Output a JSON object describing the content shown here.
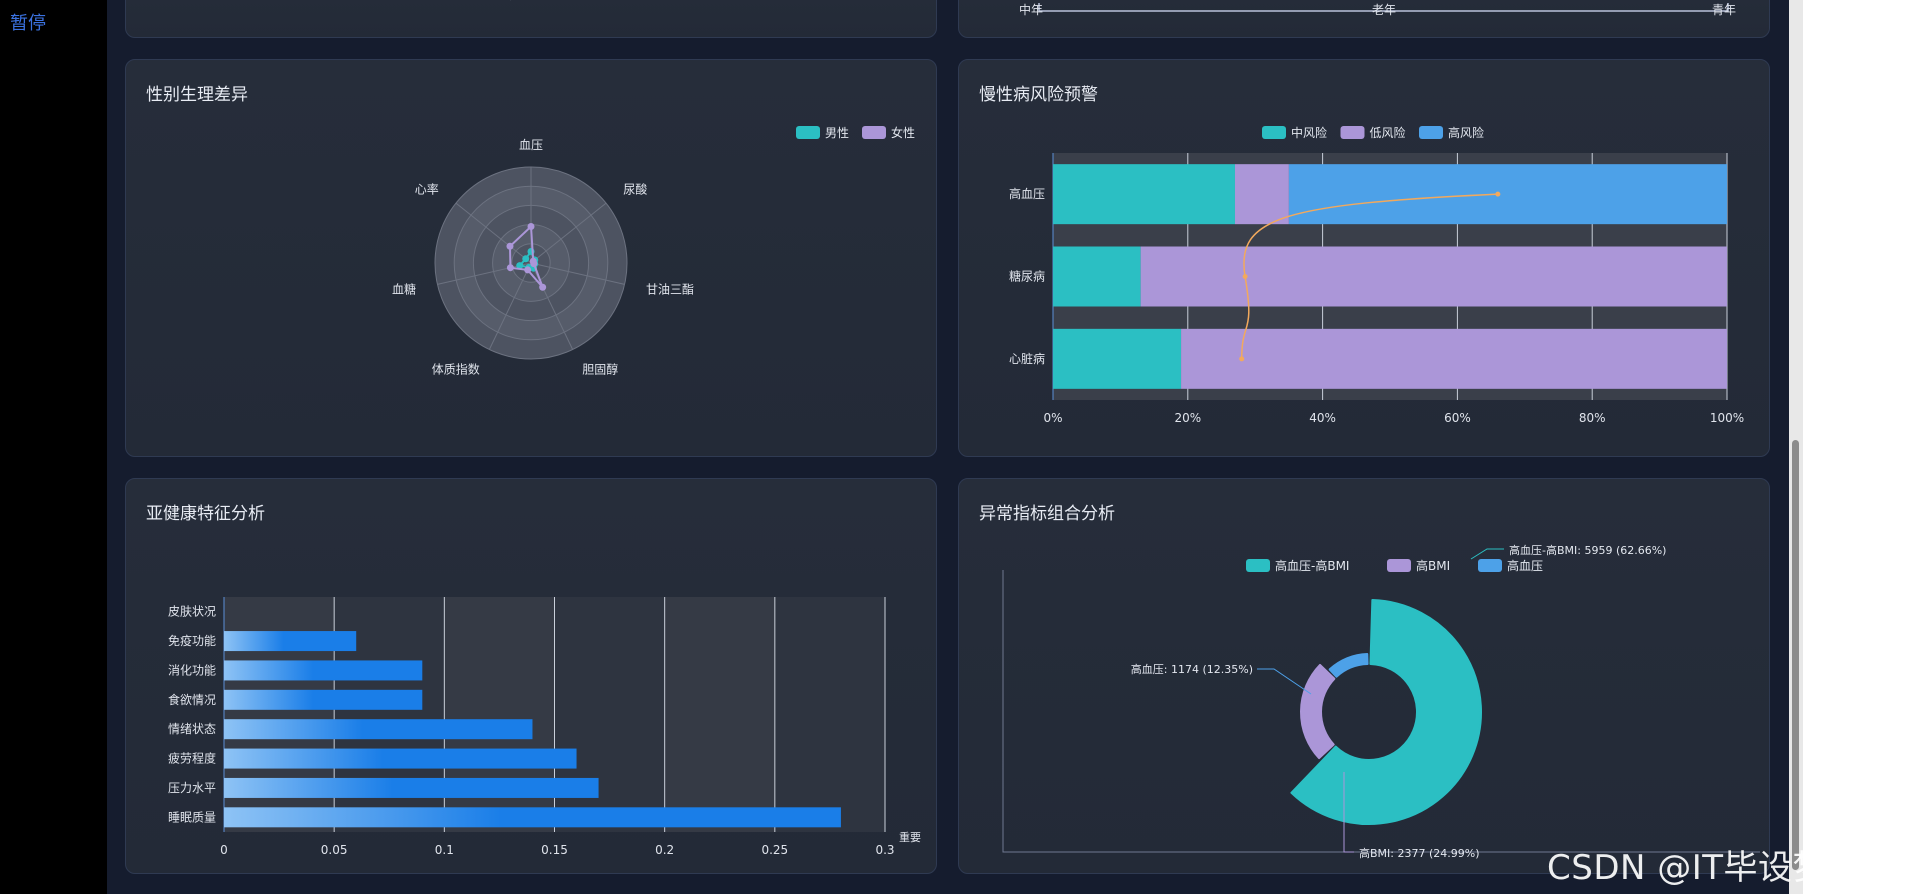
{
  "page": {
    "pause_label": "暂停",
    "watermark": "CSDN @IT毕设梦工厂"
  },
  "colors": {
    "teal": "#2bbfc3",
    "purple": "#ab96d8",
    "blue": "#4da1e8",
    "line": "#f2a95d",
    "bar_dark": "#1a7ee8",
    "bar_light": "#8ec3f5"
  },
  "top_left": {
    "partial_label": ""
  },
  "top_right": {
    "tick_labels": [
      "中年",
      "老年",
      "青年"
    ]
  },
  "radar": {
    "title": "性别生理差异",
    "legend": [
      "男性",
      "女性"
    ],
    "indicators": [
      "血压",
      "尿酸",
      "甘油三酯",
      "胆固醇",
      "体质指数",
      "血糖",
      "心率"
    ],
    "series": [
      {
        "name": "男性",
        "values": [
          0.12,
          0.05,
          0.04,
          0.06,
          0.05,
          0.12,
          0.07
        ]
      },
      {
        "name": "女性",
        "values": [
          0.38,
          0.03,
          0.03,
          0.28,
          0.08,
          0.22,
          0.28
        ]
      }
    ],
    "max": 1
  },
  "chronic": {
    "title": "慢性病风险预警",
    "legend": [
      "中风险",
      "低风险",
      "高风险"
    ],
    "chart_data": {
      "type": "bar",
      "orientation": "horizontal-stacked-percent",
      "categories": [
        "高血压",
        "糖尿病",
        "心脏病"
      ],
      "series": [
        {
          "name": "中风险",
          "values": [
            27,
            13,
            19
          ]
        },
        {
          "name": "低风险",
          "values": [
            8,
            87,
            81
          ]
        },
        {
          "name": "高风险",
          "values": [
            65,
            0,
            0
          ]
        }
      ],
      "line": {
        "values": [
          66,
          28.5,
          28
        ]
      },
      "xlim": [
        0,
        100
      ],
      "x_ticks": [
        "0%",
        "20%",
        "40%",
        "60%",
        "80%",
        "100%"
      ]
    }
  },
  "subhealth": {
    "title": "亚健康特征分析",
    "chart_data": {
      "type": "bar",
      "orientation": "horizontal",
      "categories": [
        "皮肤状况",
        "免疫功能",
        "消化功能",
        "食欲情况",
        "情绪状态",
        "疲劳程度",
        "压力水平",
        "睡眠质量"
      ],
      "values": [
        0,
        0.06,
        0.09,
        0.09,
        0.14,
        0.16,
        0.17,
        0.28
      ],
      "xlim": [
        0,
        0.3
      ],
      "x_ticks": [
        "0",
        "0.05",
        "0.1",
        "0.15",
        "0.2",
        "0.25",
        "0.3"
      ],
      "xlabel": "重要"
    }
  },
  "abnormal": {
    "title": "异常指标组合分析",
    "legend": [
      "高血压-高BMI",
      "高BMI",
      "高血压"
    ],
    "chart_data": {
      "type": "pie",
      "style": "rose-ring",
      "slices": [
        {
          "name": "高血压-高BMI",
          "value": 5959,
          "percent": "62.66%"
        },
        {
          "name": "高BMI",
          "value": 2377,
          "percent": "24.99%"
        },
        {
          "name": "高血压",
          "value": 1174,
          "percent": "12.35%"
        }
      ],
      "labels": [
        "高血压-高BMI: 5959 (62.66%)",
        "高BMI: 2377 (24.99%)",
        "高血压: 1174 (12.35%)"
      ]
    }
  }
}
